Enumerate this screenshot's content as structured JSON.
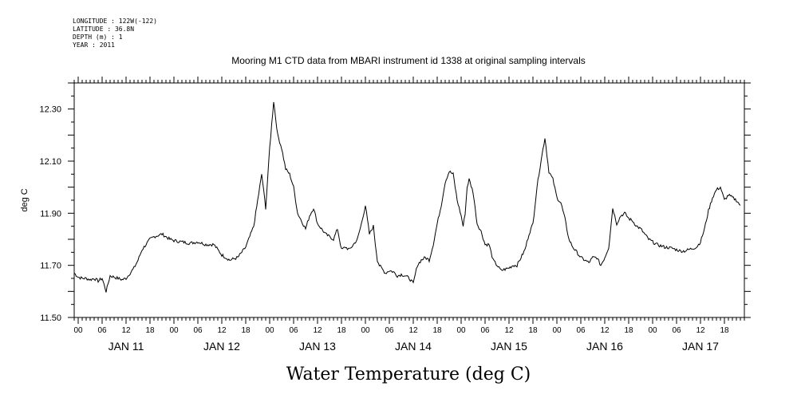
{
  "meta_lines": [
    "LONGITUDE : 122W(-122)",
    "LATITUDE : 36.8N",
    "DEPTH (m) : 1",
    "YEAR : 2011"
  ],
  "chart_data": {
    "type": "line",
    "title": "Mooring M1 CTD data from MBARI instrument id 1338 at original sampling intervals",
    "xlabel": "Water Temperature (deg C)",
    "ylabel": "deg C",
    "ylim": [
      11.5,
      12.4
    ],
    "y_ticks": [
      "12.30",
      "12.10",
      "11.90",
      "11.70",
      "11.50"
    ],
    "x_hour_labels": [
      "00",
      "06",
      "12",
      "18",
      "00",
      "06",
      "12",
      "18",
      "00",
      "06",
      "12",
      "18",
      "00",
      "06",
      "12",
      "18",
      "00",
      "06",
      "12",
      "18",
      "00",
      "06",
      "12",
      "18",
      "00",
      "06",
      "12",
      "18"
    ],
    "x_day_labels": [
      "JAN 11",
      "JAN 12",
      "JAN 13",
      "JAN 14",
      "JAN 15",
      "JAN 16",
      "JAN 17"
    ],
    "xlim_hours": [
      -1,
      167
    ],
    "line_color": "#000000",
    "series": [
      {
        "x": [
          -1,
          0,
          1,
          2,
          3,
          4,
          5,
          6,
          7,
          8,
          9,
          10,
          11,
          12,
          13,
          14,
          15,
          16,
          17,
          18,
          19,
          20,
          21,
          22,
          23,
          24,
          26,
          28,
          30,
          32,
          34,
          36,
          38,
          40,
          42,
          44,
          46,
          47,
          48,
          49,
          50,
          51,
          52,
          53,
          54,
          55,
          56,
          57,
          58,
          59,
          60,
          61,
          62,
          63,
          64,
          65,
          66,
          67,
          68,
          69,
          70,
          71,
          72,
          73,
          74,
          74.5,
          75,
          75.5,
          76,
          76.5,
          77,
          78,
          79,
          80,
          81,
          82,
          83,
          84,
          85,
          86,
          87,
          88,
          89,
          90,
          91,
          92,
          93,
          94,
          95,
          96,
          96.5,
          97,
          97.5,
          98,
          99,
          100,
          101,
          102,
          103,
          104,
          105,
          106,
          107,
          108,
          109,
          110,
          111,
          112,
          113,
          114,
          115,
          116,
          117,
          118,
          119,
          120,
          121,
          122,
          123,
          124,
          125,
          126,
          127,
          128,
          129,
          130,
          131,
          132,
          133,
          134,
          135,
          136,
          137,
          138,
          139,
          140,
          141,
          142,
          143,
          144,
          145,
          146,
          147,
          148,
          149,
          150,
          151,
          152,
          153,
          154,
          155,
          156,
          157,
          158,
          159,
          160,
          161,
          162,
          163,
          164,
          165,
          166
        ],
        "y": [
          11.67,
          11.655,
          11.65,
          11.65,
          11.645,
          11.65,
          11.64,
          11.65,
          11.6,
          11.66,
          11.655,
          11.65,
          11.645,
          11.65,
          11.67,
          11.69,
          11.72,
          11.76,
          11.78,
          11.8,
          11.81,
          11.815,
          11.82,
          11.81,
          11.8,
          11.795,
          11.79,
          11.785,
          11.79,
          11.78,
          11.78,
          11.74,
          11.72,
          11.73,
          11.77,
          11.85,
          12.05,
          11.92,
          12.15,
          12.33,
          12.2,
          12.15,
          12.07,
          12.05,
          12.0,
          11.9,
          11.87,
          11.84,
          11.89,
          11.92,
          11.86,
          11.84,
          11.82,
          11.81,
          11.8,
          11.84,
          11.76,
          11.77,
          11.76,
          11.78,
          11.8,
          11.86,
          11.93,
          11.82,
          11.85,
          11.78,
          11.72,
          11.7,
          11.69,
          11.68,
          11.67,
          11.68,
          11.675,
          11.66,
          11.665,
          11.66,
          11.65,
          11.63,
          11.7,
          11.72,
          11.73,
          11.72,
          11.78,
          11.86,
          11.93,
          12.02,
          12.06,
          12.05,
          11.95,
          11.89,
          11.85,
          11.9,
          12.0,
          12.03,
          11.98,
          11.86,
          11.83,
          11.78,
          11.78,
          11.72,
          11.7,
          11.68,
          11.685,
          11.69,
          11.7,
          11.7,
          11.73,
          11.76,
          11.82,
          11.86,
          12.0,
          12.1,
          12.19,
          12.06,
          12.03,
          11.96,
          11.94,
          11.88,
          11.8,
          11.77,
          11.75,
          11.73,
          11.72,
          11.71,
          11.73,
          11.73,
          11.7,
          11.73,
          11.77,
          11.92,
          11.86,
          11.89,
          11.9,
          11.88,
          11.87,
          11.85,
          11.84,
          11.82,
          11.8,
          11.79,
          11.78,
          11.775,
          11.77,
          11.768,
          11.765,
          11.76,
          11.755,
          11.755,
          11.76,
          11.765,
          11.77,
          11.79,
          11.84,
          11.91,
          11.96,
          11.99,
          12.0,
          11.95,
          11.97,
          11.96,
          11.95,
          11.93
        ]
      }
    ]
  }
}
